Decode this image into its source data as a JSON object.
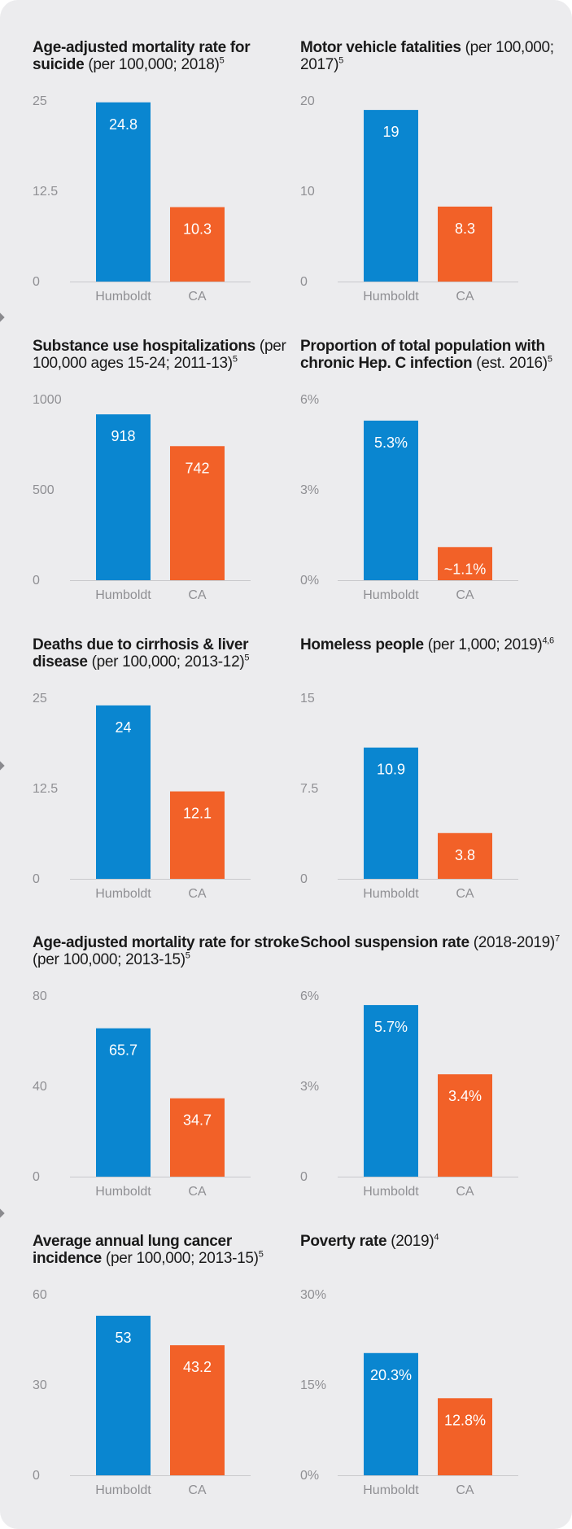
{
  "colors": {
    "humboldt": "#0a86d0",
    "ca": "#f26128",
    "axis_text": "#8f8f93",
    "baseline": "#c9c9cc",
    "panel": "#ececee"
  },
  "chart_data": [
    {
      "type": "bar",
      "title_bold": "Age-adjusted mortality rate for suicide",
      "title_rest": " (per 100,000; 2018)",
      "sup": "5",
      "categories": [
        "Humboldt",
        "CA"
      ],
      "values": [
        24.8,
        10.3
      ],
      "labels": [
        "24.8",
        "10.3"
      ],
      "ylim": [
        0,
        25
      ],
      "yticks": [
        {
          "v": 0,
          "t": "0"
        },
        {
          "v": 12.5,
          "t": "12.5"
        },
        {
          "v": 25,
          "t": "25"
        }
      ]
    },
    {
      "type": "bar",
      "title_bold": "Motor vehicle fatalities",
      "title_rest": " (per 100,000; 2017)",
      "sup": "5",
      "categories": [
        "Humboldt",
        "CA"
      ],
      "values": [
        19,
        8.3
      ],
      "labels": [
        "19",
        "8.3"
      ],
      "ylim": [
        0,
        20
      ],
      "yticks": [
        {
          "v": 0,
          "t": "0"
        },
        {
          "v": 10,
          "t": "10"
        },
        {
          "v": 20,
          "t": "20"
        }
      ]
    },
    {
      "type": "bar",
      "title_bold": "Substance use hospitalizations",
      "title_rest": " (per 100,000 ages 15-24; 2011-13)",
      "sup": "5",
      "categories": [
        "Humboldt",
        "CA"
      ],
      "values": [
        918,
        742
      ],
      "labels": [
        "918",
        "742"
      ],
      "ylim": [
        0,
        1000
      ],
      "yticks": [
        {
          "v": 0,
          "t": "0"
        },
        {
          "v": 500,
          "t": "500"
        },
        {
          "v": 1000,
          "t": "1000"
        }
      ]
    },
    {
      "type": "bar",
      "title_bold": "Proportion of total population with chronic Hep. C infection",
      "title_rest": " (est. 2016)",
      "sup": "5",
      "categories": [
        "Humboldt",
        "CA"
      ],
      "values": [
        5.3,
        1.1
      ],
      "labels": [
        "5.3%",
        "~1.1%"
      ],
      "ylim": [
        0,
        6
      ],
      "yticks": [
        {
          "v": 0,
          "t": "0%"
        },
        {
          "v": 3,
          "t": "3%"
        },
        {
          "v": 6,
          "t": "6%"
        }
      ]
    },
    {
      "type": "bar",
      "title_bold": "Deaths due to cirrhosis & liver disease",
      "title_rest": " (per 100,000; 2013-12)",
      "sup": "5",
      "categories": [
        "Humboldt",
        "CA"
      ],
      "values": [
        24,
        12.1
      ],
      "labels": [
        "24",
        "12.1"
      ],
      "ylim": [
        0,
        25
      ],
      "yticks": [
        {
          "v": 0,
          "t": "0"
        },
        {
          "v": 12.5,
          "t": "12.5"
        },
        {
          "v": 25,
          "t": "25"
        }
      ]
    },
    {
      "type": "bar",
      "title_bold": "Homeless people",
      "title_rest": " (per 1,000; 2019)",
      "sup": "4,6",
      "categories": [
        "Humboldt",
        "CA"
      ],
      "values": [
        10.9,
        3.8
      ],
      "labels": [
        "10.9",
        "3.8"
      ],
      "ylim": [
        0,
        15
      ],
      "yticks": [
        {
          "v": 0,
          "t": "0"
        },
        {
          "v": 7.5,
          "t": "7.5"
        },
        {
          "v": 15,
          "t": "15"
        }
      ]
    },
    {
      "type": "bar",
      "title_bold": "Age-adjusted mortality rate for stroke",
      "title_rest": " (per 100,000; 2013-15)",
      "sup": "5",
      "categories": [
        "Humboldt",
        "CA"
      ],
      "values": [
        65.7,
        34.7
      ],
      "labels": [
        "65.7",
        "34.7"
      ],
      "ylim": [
        0,
        80
      ],
      "yticks": [
        {
          "v": 0,
          "t": "0"
        },
        {
          "v": 40,
          "t": "40"
        },
        {
          "v": 80,
          "t": "80"
        }
      ]
    },
    {
      "type": "bar",
      "title_bold": "School suspension rate",
      "title_rest": " (2018-2019)",
      "sup": "7",
      "categories": [
        "Humboldt",
        "CA"
      ],
      "values": [
        5.7,
        3.4
      ],
      "labels": [
        "5.7%",
        "3.4%"
      ],
      "ylim": [
        0,
        6
      ],
      "yticks": [
        {
          "v": 0,
          "t": "0"
        },
        {
          "v": 3,
          "t": "3%"
        },
        {
          "v": 6,
          "t": "6%"
        }
      ]
    },
    {
      "type": "bar",
      "title_bold": "Average annual lung cancer incidence",
      "title_rest": " (per 100,000; 2013-15)",
      "sup": "5",
      "categories": [
        "Humboldt",
        "CA"
      ],
      "values": [
        53,
        43.2
      ],
      "labels": [
        "53",
        "43.2"
      ],
      "ylim": [
        0,
        60
      ],
      "yticks": [
        {
          "v": 0,
          "t": "0"
        },
        {
          "v": 30,
          "t": "30"
        },
        {
          "v": 60,
          "t": "60"
        }
      ]
    },
    {
      "type": "bar",
      "title_bold": "Poverty rate",
      "title_rest": " (2019)",
      "sup": "4",
      "categories": [
        "Humboldt",
        "CA"
      ],
      "values": [
        20.3,
        12.8
      ],
      "labels": [
        "20.3%",
        "12.8%"
      ],
      "ylim": [
        0,
        30
      ],
      "yticks": [
        {
          "v": 0,
          "t": "0%"
        },
        {
          "v": 15,
          "t": "15%"
        },
        {
          "v": 30,
          "t": "30%"
        }
      ]
    }
  ]
}
